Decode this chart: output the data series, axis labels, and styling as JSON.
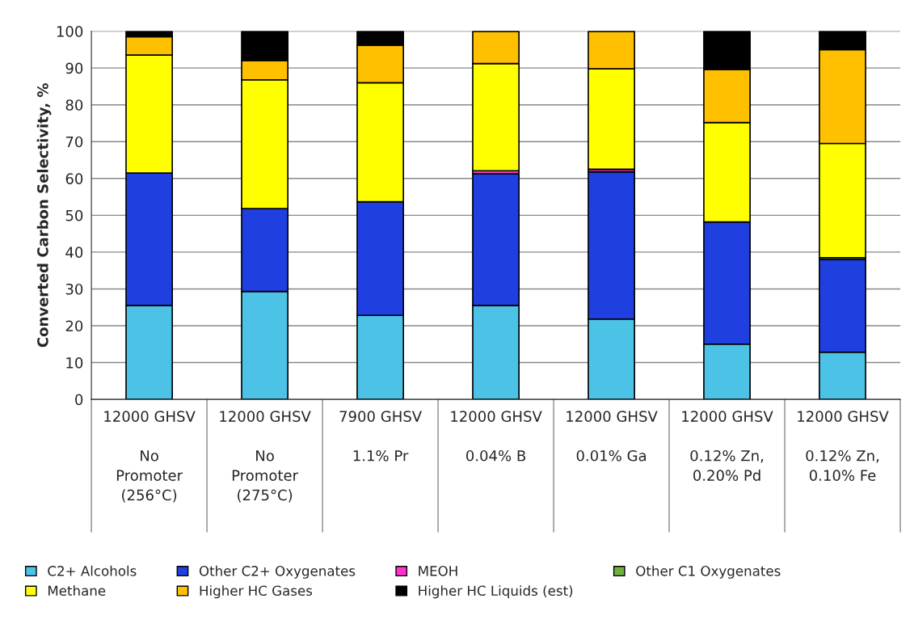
{
  "chart_data": {
    "type": "bar",
    "stacked": true,
    "ylabel": "Converted Carbon Selectivity, %",
    "categories": [
      "12000 GHSV\n\nNo\nPromoter\n(256°C)",
      "12000 GHSV\n\nNo\nPromoter\n(275°C)",
      "7900 GHSV\n\n1.1% Pr",
      "12000 GHSV\n\n0.04% B",
      "12000 GHSV\n\n0.01% Ga",
      "12000 GHSV\n\n0.12% Zn,\n0.20% Pd",
      "12000 GHSV\n\n0.12% Zn,\n0.10% Fe"
    ],
    "series": [
      {
        "name": "C2+ Alcohols",
        "color": "#4cc3e6",
        "values": [
          25.5,
          29.3,
          22.8,
          25.5,
          21.8,
          15.0,
          12.8
        ]
      },
      {
        "name": "Other C2+ Oxygenates",
        "color": "#1f3fe0",
        "values": [
          36.0,
          22.5,
          30.9,
          35.8,
          40.0,
          33.2,
          25.2
        ]
      },
      {
        "name": "MEOH",
        "color": "#ff33cc",
        "values": [
          0,
          0,
          0,
          0.8,
          0.7,
          0,
          0
        ]
      },
      {
        "name": "Other C1 Oxygenates",
        "color": "#70b040",
        "values": [
          0,
          0,
          0,
          0,
          0,
          0,
          0.5
        ]
      },
      {
        "name": "Methane",
        "color": "#ffff00",
        "values": [
          32.0,
          35.0,
          32.3,
          29.1,
          27.3,
          27.0,
          31.0
        ]
      },
      {
        "name": "Higher HC Gases",
        "color": "#ffc000",
        "values": [
          5.0,
          5.2,
          10.2,
          8.8,
          10.2,
          14.4,
          25.5
        ]
      },
      {
        "name": "Higher HC Liquids (est)",
        "color": "#000000",
        "values": [
          1.5,
          8.0,
          3.8,
          0,
          0,
          10.4,
          5.0
        ]
      }
    ],
    "ylim": [
      0,
      100
    ],
    "yticks": [
      0,
      10,
      20,
      30,
      40,
      50,
      60,
      70,
      80,
      90,
      100
    ],
    "grid": "y",
    "legend": "bottom"
  }
}
